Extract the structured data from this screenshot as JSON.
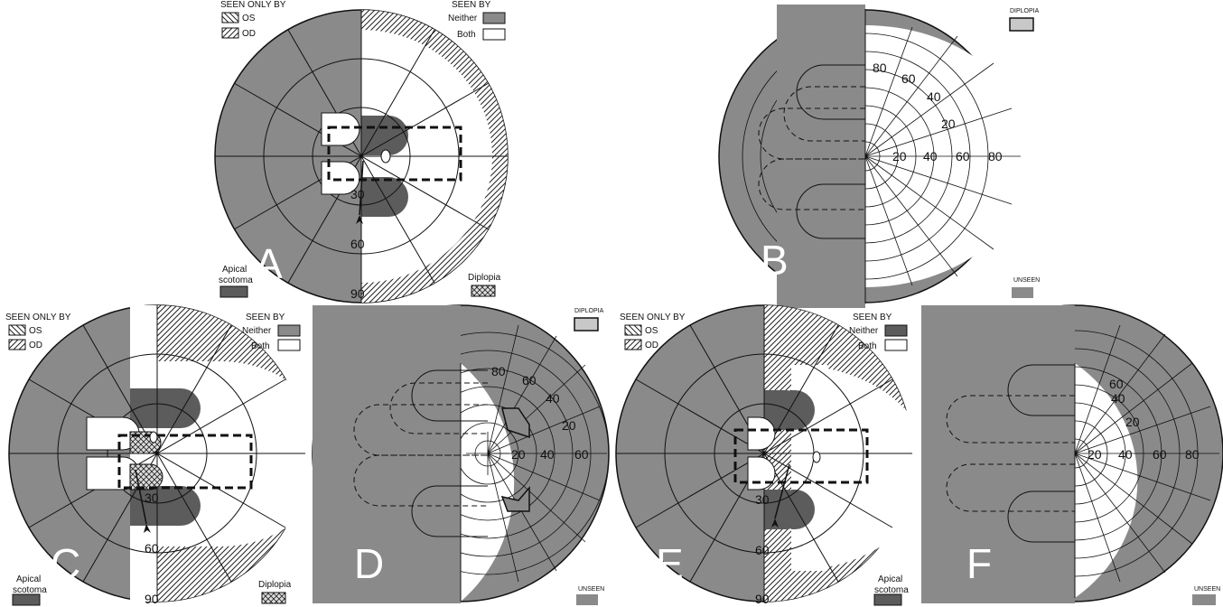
{
  "panels": [
    {
      "letter": "A",
      "ecc": [
        "30",
        "60",
        "90"
      ]
    },
    {
      "letter": "B",
      "ticks": [
        "80",
        "60",
        "40",
        "20",
        "20",
        "40",
        "60",
        "80"
      ]
    },
    {
      "letter": "C",
      "ecc": [
        "30",
        "60",
        "90"
      ]
    },
    {
      "letter": "D",
      "ticks": [
        "80",
        "60",
        "40",
        "20",
        "20",
        "40",
        "60"
      ]
    },
    {
      "letter": "E",
      "ecc": [
        "30",
        "60",
        "90"
      ]
    },
    {
      "letter": "F",
      "ticks": [
        "60",
        "40",
        "20",
        "20",
        "40",
        "60",
        "80"
      ]
    }
  ],
  "legend": {
    "seen_only_by": "SEEN ONLY BY",
    "os": "OS",
    "od": "OD",
    "seen_by": "SEEN BY",
    "neither": "Neither",
    "both": "Both",
    "apical": "Apical",
    "scotoma": "scotoma",
    "diplopia": "Diplopia",
    "diplopia_caps": "DIPLOPIA",
    "unseen": "UNSEEN"
  },
  "colors": {
    "gray": "#8a8a8a",
    "dark": "#5c5c5c",
    "line": "#111111",
    "white": "#ffffff"
  }
}
